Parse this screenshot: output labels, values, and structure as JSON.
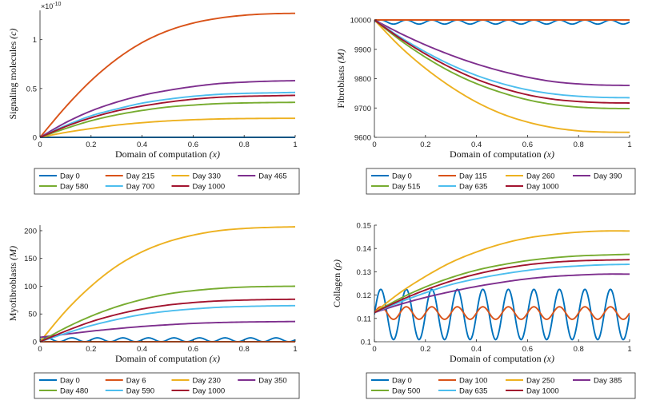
{
  "figure": {
    "colors": {
      "blue": "#0072BD",
      "orange": "#D95319",
      "yellow": "#EDB120",
      "purple": "#7E2F8E",
      "green": "#77AC30",
      "cyan": "#4DBEEE",
      "maroon": "#A2142F",
      "axis": "#262626"
    }
  },
  "chart_data": [
    {
      "type": "line",
      "title": "",
      "xlabel": "Domain of computation ",
      "xlabel_var": "(x)",
      "ylabel": "Signaling molecules ",
      "ylabel_var": "(c)",
      "xlim": [
        0,
        1
      ],
      "ylim": [
        0,
        1.3
      ],
      "xticks": [
        0,
        0.2,
        0.4,
        0.6,
        0.8,
        1
      ],
      "xtick_labels": [
        "0",
        "0.2",
        "0.4",
        "0.6",
        "0.8",
        "1"
      ],
      "yticks": [
        0,
        0.5,
        1
      ],
      "ytick_labels": [
        "0",
        "0.5",
        "1"
      ],
      "exponent_label": "×10",
      "exponent_power": "-10",
      "x": [
        0,
        0.1,
        0.2,
        0.3,
        0.4,
        0.5,
        0.6,
        0.7,
        0.8,
        0.9,
        1.0
      ],
      "series": [
        {
          "name": "Day 0",
          "color": "blue",
          "values": [
            0,
            0,
            0,
            0,
            0,
            0,
            0,
            0,
            0,
            0,
            0
          ]
        },
        {
          "name": "Day 215",
          "color": "orange",
          "values": [
            0,
            0.31,
            0.58,
            0.8,
            0.97,
            1.09,
            1.17,
            1.22,
            1.25,
            1.265,
            1.27
          ]
        },
        {
          "name": "Day 330",
          "color": "yellow",
          "values": [
            0,
            0.05,
            0.09,
            0.125,
            0.15,
            0.168,
            0.18,
            0.188,
            0.192,
            0.194,
            0.195
          ]
        },
        {
          "name": "Day 465",
          "color": "purple",
          "values": [
            0,
            0.15,
            0.27,
            0.36,
            0.43,
            0.48,
            0.52,
            0.55,
            0.565,
            0.575,
            0.58
          ]
        },
        {
          "name": "Day 580",
          "color": "green",
          "values": [
            0,
            0.09,
            0.17,
            0.23,
            0.275,
            0.31,
            0.33,
            0.345,
            0.352,
            0.356,
            0.358
          ]
        },
        {
          "name": "Day 700",
          "color": "cyan",
          "values": [
            0,
            0.12,
            0.22,
            0.29,
            0.35,
            0.39,
            0.42,
            0.44,
            0.45,
            0.455,
            0.46
          ]
        },
        {
          "name": "Day 1000",
          "color": "maroon",
          "values": [
            0,
            0.11,
            0.2,
            0.27,
            0.32,
            0.36,
            0.39,
            0.41,
            0.42,
            0.425,
            0.43
          ]
        }
      ],
      "legend": [
        [
          "Day 0",
          "Day 215",
          "Day 330",
          "Day 465"
        ],
        [
          "Day 580",
          "Day 700",
          "Day 1000"
        ]
      ]
    },
    {
      "type": "line",
      "title": "",
      "xlabel": "Domain of computation ",
      "xlabel_var": "(x)",
      "ylabel": "Fibroblasts ",
      "ylabel_var": "(M)",
      "xlim": [
        0,
        1
      ],
      "ylim": [
        9600,
        10000
      ],
      "xticks": [
        0,
        0.2,
        0.4,
        0.6,
        0.8,
        1
      ],
      "xtick_labels": [
        "0",
        "0.2",
        "0.4",
        "0.6",
        "0.8",
        "1"
      ],
      "yticks": [
        9600,
        9700,
        9800,
        9900,
        10000
      ],
      "ytick_labels": [
        "9600",
        "9700",
        "9800",
        "9900",
        "10000"
      ],
      "x": [
        0,
        0.1,
        0.2,
        0.3,
        0.4,
        0.5,
        0.6,
        0.7,
        0.8,
        0.9,
        1.0
      ],
      "series": [
        {
          "name": "Day 0",
          "color": "blue",
          "oscillation": {
            "base": 9993,
            "amplitude": 7,
            "cycles": 10
          }
        },
        {
          "name": "Day 115",
          "color": "orange",
          "values": [
            10000,
            10000,
            10000,
            10000,
            10000,
            10000,
            10000,
            10000,
            10000,
            10000,
            10000
          ]
        },
        {
          "name": "Day 260",
          "color": "yellow",
          "values": [
            10000,
            9910,
            9835,
            9772,
            9720,
            9680,
            9652,
            9633,
            9622,
            9618,
            9617
          ]
        },
        {
          "name": "Day 390",
          "color": "purple",
          "values": [
            10000,
            9955,
            9915,
            9880,
            9850,
            9825,
            9805,
            9790,
            9782,
            9778,
            9777
          ]
        },
        {
          "name": "Day 515",
          "color": "green",
          "values": [
            10000,
            9932,
            9873,
            9823,
            9783,
            9752,
            9728,
            9712,
            9703,
            9699,
            9698
          ]
        },
        {
          "name": "Day 635",
          "color": "cyan",
          "values": [
            10000,
            9942,
            9891,
            9847,
            9811,
            9783,
            9762,
            9748,
            9740,
            9736,
            9735
          ]
        },
        {
          "name": "Day 1000",
          "color": "maroon",
          "values": [
            10000,
            9938,
            9884,
            9837,
            9798,
            9768,
            9745,
            9730,
            9722,
            9718,
            9717
          ]
        }
      ],
      "legend": [
        [
          "Day 0",
          "Day 115",
          "Day 260",
          "Day 390"
        ],
        [
          "Day 515",
          "Day 635",
          "Day 1000"
        ]
      ]
    },
    {
      "type": "line",
      "title": "",
      "xlabel": "Domain of computation ",
      "xlabel_var": "(x)",
      "ylabel": "Myofibroblasts ",
      "ylabel_var": "(M)",
      "xlim": [
        0,
        1
      ],
      "ylim": [
        0,
        210
      ],
      "xticks": [
        0,
        0.2,
        0.4,
        0.6,
        0.8,
        1
      ],
      "xtick_labels": [
        "0",
        "0.2",
        "0.4",
        "0.6",
        "0.8",
        "1"
      ],
      "yticks": [
        0,
        50,
        100,
        150,
        200
      ],
      "ytick_labels": [
        "0",
        "50",
        "100",
        "150",
        "200"
      ],
      "x": [
        0,
        0.1,
        0.2,
        0.3,
        0.4,
        0.5,
        0.6,
        0.7,
        0.8,
        0.9,
        1.0
      ],
      "series": [
        {
          "name": "Day 0",
          "color": "blue",
          "oscillation": {
            "base": 3.5,
            "amplitude": 3.5,
            "cycles": 10
          }
        },
        {
          "name": "Day 6",
          "color": "orange",
          "values": [
            0,
            0,
            0,
            0,
            0,
            0,
            0,
            0,
            0,
            0,
            0
          ]
        },
        {
          "name": "Day 230",
          "color": "yellow",
          "values": [
            0,
            55,
            100,
            136,
            162,
            180,
            192,
            200,
            204,
            206,
            207
          ]
        },
        {
          "name": "Day 350",
          "color": "purple",
          "values": [
            8,
            13.5,
            19,
            23.5,
            27.5,
            30.5,
            33,
            34.5,
            35.5,
            36,
            36.5
          ]
        },
        {
          "name": "Day 480",
          "color": "green",
          "values": [
            0,
            25,
            46,
            63,
            76,
            86,
            92,
            96,
            98.5,
            99.5,
            100
          ]
        },
        {
          "name": "Day 590",
          "color": "cyan",
          "values": [
            0,
            15,
            29,
            40,
            49,
            55,
            59,
            62,
            63.5,
            64.5,
            65
          ]
        },
        {
          "name": "Day 1000",
          "color": "maroon",
          "values": [
            0,
            19,
            36,
            49,
            59,
            66,
            70.5,
            73.5,
            75,
            76,
            76.5
          ]
        }
      ],
      "legend": [
        [
          "Day 0",
          "Day 6",
          "Day 230",
          "Day 350"
        ],
        [
          "Day 480",
          "Day 590",
          "Day 1000"
        ]
      ]
    },
    {
      "type": "line",
      "title": "",
      "xlabel": "Domain of computation ",
      "xlabel_var": "(x)",
      "ylabel": "Collagen ",
      "ylabel_var": "(ρ)",
      "xlim": [
        0,
        1
      ],
      "ylim": [
        0.1,
        0.15
      ],
      "xticks": [
        0,
        0.2,
        0.4,
        0.6,
        0.8,
        1
      ],
      "xtick_labels": [
        "0",
        "0.2",
        "0.4",
        "0.6",
        "0.8",
        "1"
      ],
      "yticks": [
        0.1,
        0.11,
        0.12,
        0.13,
        0.14,
        0.15
      ],
      "ytick_labels": [
        "0.1",
        "0.11",
        "0.12",
        "0.13",
        "0.14",
        "0.15"
      ],
      "x": [
        0,
        0.1,
        0.2,
        0.3,
        0.4,
        0.5,
        0.6,
        0.7,
        0.8,
        0.9,
        1.0
      ],
      "series": [
        {
          "name": "Day 0",
          "color": "blue",
          "oscillation": {
            "base": 0.1117,
            "amplitude": 0.0108,
            "cycles": 10
          }
        },
        {
          "name": "Day 100",
          "color": "orange",
          "oscillation": {
            "base": 0.1123,
            "amplitude": 0.0027,
            "cycles": 10
          }
        },
        {
          "name": "Day 250",
          "color": "yellow",
          "values": [
            0.1125,
            0.121,
            0.128,
            0.134,
            0.1385,
            0.142,
            0.1445,
            0.146,
            0.147,
            0.1475,
            0.1475
          ]
        },
        {
          "name": "Day 385",
          "color": "purple",
          "values": [
            0.1125,
            0.116,
            0.119,
            0.1215,
            0.1237,
            0.1255,
            0.127,
            0.128,
            0.1286,
            0.129,
            0.129
          ]
        },
        {
          "name": "Day 500",
          "color": "green",
          "values": [
            0.1125,
            0.1185,
            0.1235,
            0.1275,
            0.1307,
            0.133,
            0.1348,
            0.136,
            0.1368,
            0.1372,
            0.1375
          ]
        },
        {
          "name": "Day 635",
          "color": "cyan",
          "values": [
            0.1125,
            0.117,
            0.121,
            0.1245,
            0.127,
            0.129,
            0.1306,
            0.1318,
            0.1325,
            0.133,
            0.1332
          ]
        },
        {
          "name": "Day 1000",
          "color": "maroon",
          "values": [
            0.1125,
            0.1177,
            0.1222,
            0.126,
            0.129,
            0.1313,
            0.133,
            0.1341,
            0.1347,
            0.135,
            0.1352
          ]
        }
      ],
      "legend": [
        [
          "Day 0",
          "Day 100",
          "Day 250",
          "Day 385"
        ],
        [
          "Day 500",
          "Day 635",
          "Day 1000"
        ]
      ]
    }
  ]
}
